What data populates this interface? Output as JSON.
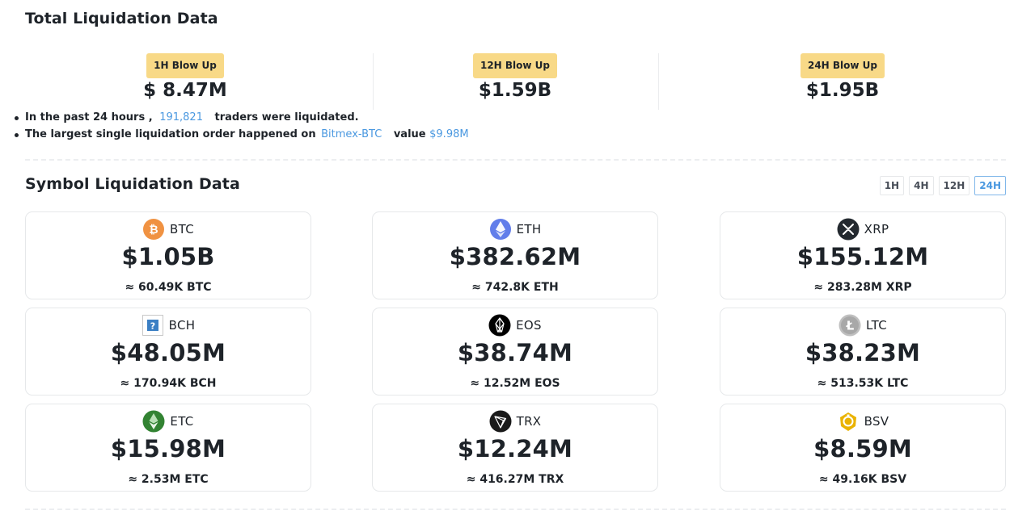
{
  "total": {
    "title": "Total Liquidation Data",
    "blowups": [
      {
        "label": "1H Blow Up",
        "amount": "$ 8.47M"
      },
      {
        "label": "12H Blow Up",
        "amount": "$1.59B"
      },
      {
        "label": "24H Blow Up",
        "amount": "$1.95B"
      }
    ],
    "line1": {
      "prefix": "In the past 24 hours ,",
      "count": "191,821",
      "suffix": "traders were liquidated."
    },
    "line2": {
      "prefix": "The largest single liquidation order happened on",
      "exchange": "Bitmex-BTC",
      "value_label": "value",
      "value": "$9.98M"
    }
  },
  "symbol": {
    "title": "Symbol Liquidation Data",
    "timeframes": [
      "1H",
      "4H",
      "12H",
      "24H"
    ],
    "active_timeframe": "24H",
    "cards": [
      {
        "name": "BTC",
        "amount": "$1.05B",
        "approx": "≈ 60.49K BTC",
        "icon": "btc-icon"
      },
      {
        "name": "ETH",
        "amount": "$382.62M",
        "approx": "≈ 742.8K ETH",
        "icon": "eth-icon"
      },
      {
        "name": "XRP",
        "amount": "$155.12M",
        "approx": "≈ 283.28M XRP",
        "icon": "xrp-icon"
      },
      {
        "name": "BCH",
        "amount": "$48.05M",
        "approx": "≈ 170.94K BCH",
        "icon": "missing-image-icon"
      },
      {
        "name": "EOS",
        "amount": "$38.74M",
        "approx": "≈ 12.52M EOS",
        "icon": "eos-icon"
      },
      {
        "name": "LTC",
        "amount": "$38.23M",
        "approx": "≈ 513.53K LTC",
        "icon": "ltc-icon"
      },
      {
        "name": "ETC",
        "amount": "$15.98M",
        "approx": "≈ 2.53M ETC",
        "icon": "etc-icon"
      },
      {
        "name": "TRX",
        "amount": "$12.24M",
        "approx": "≈ 416.27M TRX",
        "icon": "trx-icon"
      },
      {
        "name": "BSV",
        "amount": "$8.59M",
        "approx": "≈ 49.16K BSV",
        "icon": "bsv-icon"
      }
    ]
  },
  "colors": {
    "badge": "#f8d987",
    "highlight": "#4a98e0",
    "text": "#1e2329",
    "border": "#e6e8ea"
  }
}
